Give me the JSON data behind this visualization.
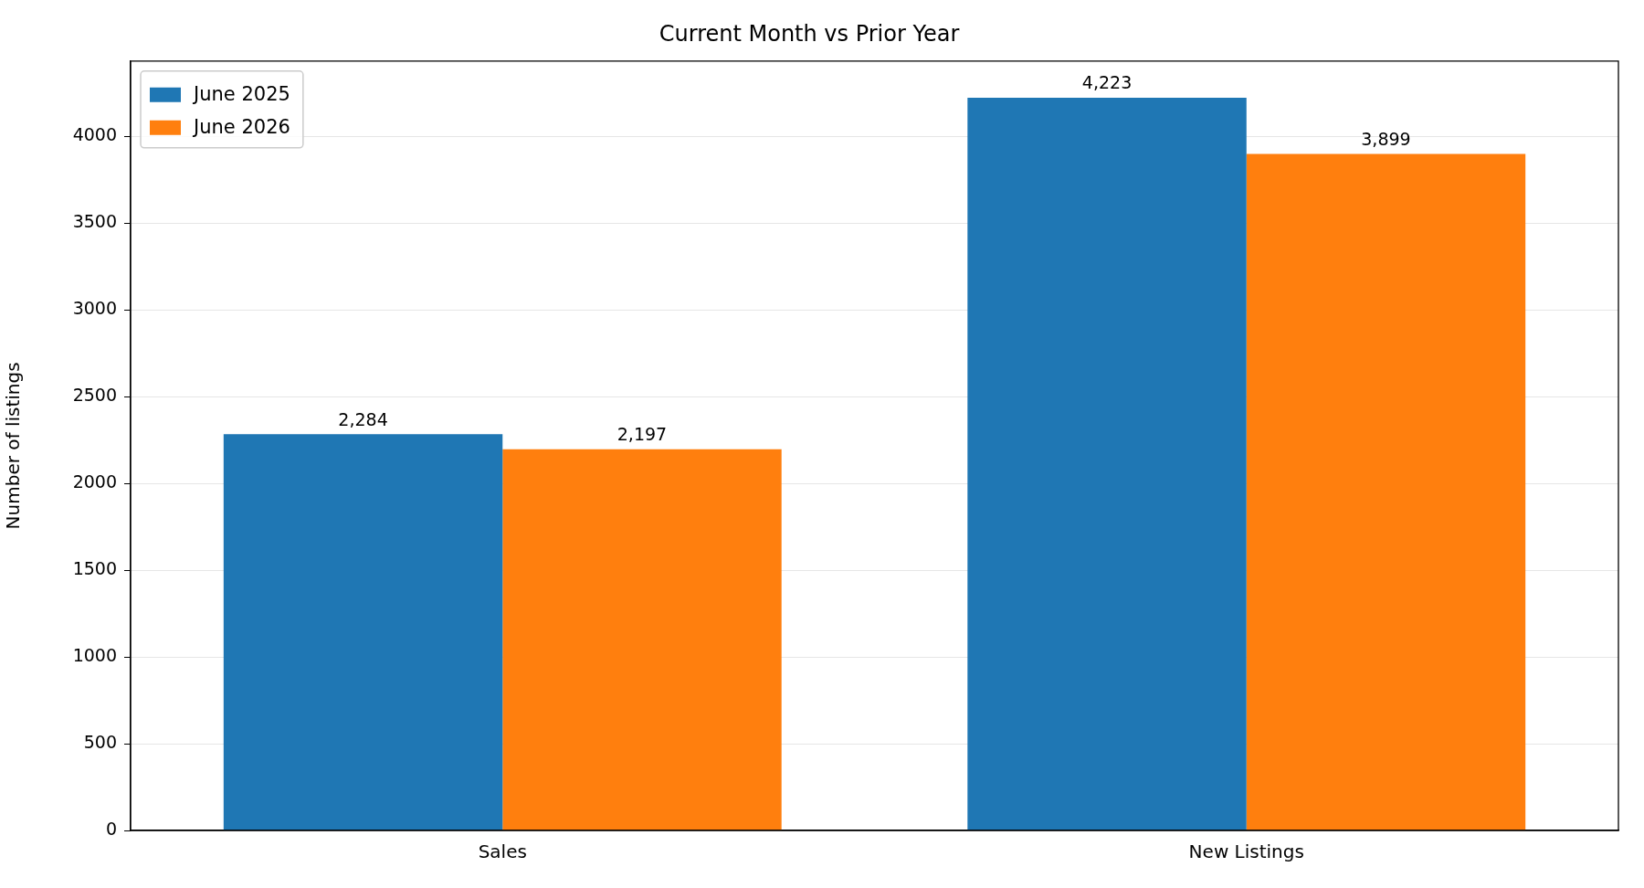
{
  "chart_data": {
    "type": "bar",
    "title": "Current Month vs Prior Year",
    "ylabel": "Number of listings",
    "categories": [
      "Sales",
      "New Listings"
    ],
    "series": [
      {
        "name": "June 2025",
        "color": "#1f77b4",
        "values": [
          2284,
          4223
        ],
        "value_labels": [
          "2,284",
          "4,223"
        ]
      },
      {
        "name": "June 2026",
        "color": "#ff7f0e",
        "values": [
          2197,
          3899
        ],
        "value_labels": [
          "2,197",
          "3,899"
        ]
      }
    ],
    "ylim": [
      0,
      4434
    ],
    "yticks": [
      0,
      500,
      1000,
      1500,
      2000,
      2500,
      3000,
      3500,
      4000
    ],
    "grid": "y",
    "legend": "top left"
  }
}
